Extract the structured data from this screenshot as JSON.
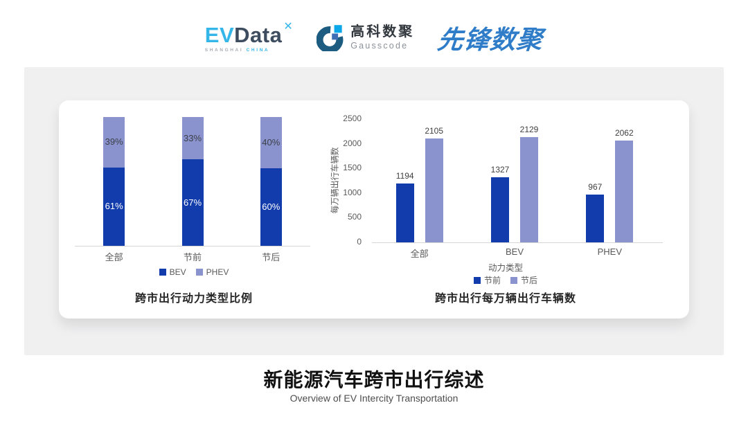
{
  "header": {
    "evdata": {
      "ev": "EV",
      "data": "Data",
      "mark": "✕",
      "sub1": "SHANGHAI",
      "sub2": "CHINA"
    },
    "gausscode": {
      "cn": "高科数聚",
      "en": "Gausscode"
    },
    "xianfeng": {
      "text": "先锋数聚"
    }
  },
  "colors": {
    "series_dark_blue": "#123BAC",
    "series_light_purple": "#8B93CE",
    "panel_gray": "#F0F0F1",
    "axis_gray": "#D6D6D6",
    "seg_label_on_dark": "#FFFFFF",
    "seg_label_on_light": "#3A3F46"
  },
  "chart_data": [
    {
      "type": "bar",
      "subtype": "stacked-percent",
      "title": "跨市出行动力类型比例",
      "categories": [
        "全部",
        "节前",
        "节后"
      ],
      "series": [
        {
          "name": "BEV",
          "values": [
            61,
            67,
            60
          ],
          "color": "#123BAC"
        },
        {
          "name": "PHEV",
          "values": [
            39,
            33,
            40
          ],
          "color": "#8B93CE"
        }
      ],
      "value_suffix": "%",
      "ylim": [
        0,
        100
      ],
      "legend_position": "bottom",
      "grid": false
    },
    {
      "type": "bar",
      "subtype": "grouped",
      "title": "跨市出行每万辆出行车辆数",
      "categories": [
        "全部",
        "BEV",
        "PHEV"
      ],
      "series": [
        {
          "name": "节前",
          "values": [
            1194,
            1327,
            967
          ],
          "color": "#123BAC"
        },
        {
          "name": "节后",
          "values": [
            2105,
            2129,
            2062
          ],
          "color": "#8B93CE"
        }
      ],
      "xlabel": "动力类型",
      "ylabel": "每万辆出行车辆数",
      "ylim": [
        0,
        2500
      ],
      "yticks": [
        0,
        500,
        1000,
        1500,
        2000,
        2500
      ],
      "legend_position": "bottom",
      "grid": false
    }
  ],
  "footer": {
    "title": "新能源汽车跨市出行综述",
    "subtitle": "Overview of EV Intercity Transportation"
  }
}
